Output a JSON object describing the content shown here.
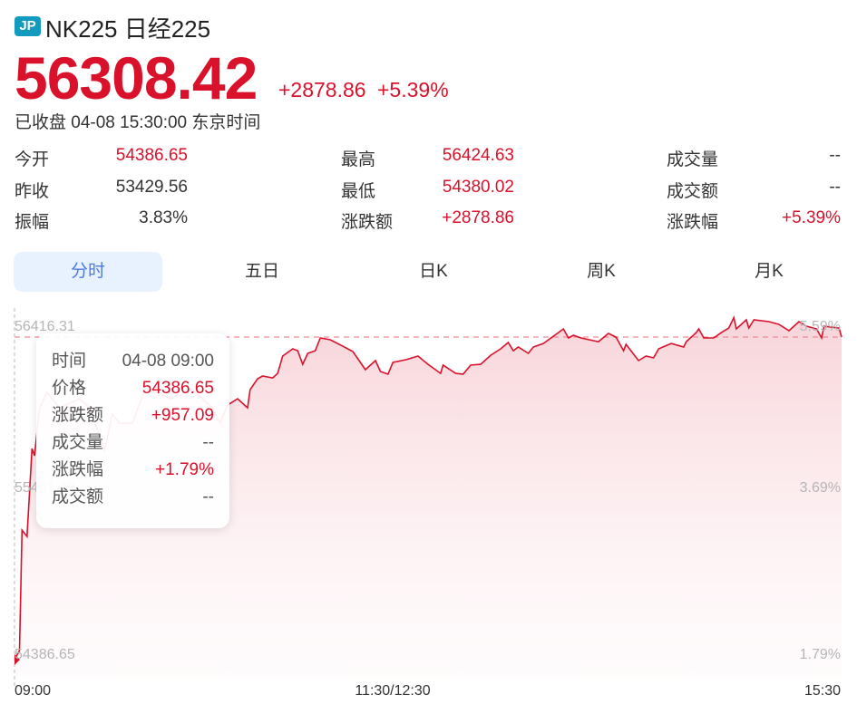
{
  "header": {
    "badge": "JP",
    "title": "NK225 日经225",
    "price": "56308.42",
    "change": "+2878.86",
    "change_pct": "+5.39%",
    "status": "已收盘 04-08 15:30:00 东京时间"
  },
  "stats": [
    {
      "label": "今开",
      "value": "54386.65",
      "color": "red"
    },
    {
      "label": "最高",
      "value": "56424.63",
      "color": "red"
    },
    {
      "label": "成交量",
      "value": "--",
      "color": "dark"
    },
    {
      "label": "昨收",
      "value": "53429.56",
      "color": "dark"
    },
    {
      "label": "最低",
      "value": "54380.02",
      "color": "red"
    },
    {
      "label": "成交额",
      "value": "--",
      "color": "dark"
    },
    {
      "label": "振幅",
      "value": "3.83%",
      "color": "dark"
    },
    {
      "label": "涨跌额",
      "value": "+2878.86",
      "color": "red"
    },
    {
      "label": "涨跌幅",
      "value": "+5.39%",
      "color": "red"
    }
  ],
  "tabs": [
    {
      "label": "分时",
      "active": true
    },
    {
      "label": "五日",
      "active": false
    },
    {
      "label": "日K",
      "active": false
    },
    {
      "label": "周K",
      "active": false
    },
    {
      "label": "月K",
      "active": false
    }
  ],
  "tooltip": {
    "rows": [
      {
        "label": "时间",
        "value": "04-08 09:00",
        "color": "dark"
      },
      {
        "label": "价格",
        "value": "54386.65",
        "color": "red"
      },
      {
        "label": "涨跌额",
        "value": "+957.09",
        "color": "red"
      },
      {
        "label": "成交量",
        "value": "--",
        "color": "dark"
      },
      {
        "label": "涨跌幅",
        "value": "+1.79%",
        "color": "red"
      },
      {
        "label": "成交额",
        "value": "--",
        "color": "dark"
      }
    ]
  },
  "colors": {
    "up": "#d9112a",
    "tab_active_bg": "#e8f1fe",
    "tab_active_text": "#4d7bdc",
    "badge": "#129bbf"
  },
  "chart_data": {
    "type": "area",
    "ylim": [
      54386.65,
      56416.31
    ],
    "y_ticks_left": [
      "56416.31",
      "55401.48",
      "54386.65"
    ],
    "y_ticks_right": [
      "5.59%",
      "3.69%",
      "1.79%"
    ],
    "x_ticks": [
      "09:00",
      "11:30/12:30",
      "15:30"
    ],
    "sessions": [
      [
        "09:00",
        "11:30"
      ],
      [
        "12:30",
        "15:30"
      ]
    ],
    "reference_line": 56308.42,
    "crosshair_time": "09:00",
    "grid": false,
    "points": [
      [
        "09:00",
        54386.65
      ],
      [
        "09:02",
        54440
      ],
      [
        "09:03",
        55158
      ],
      [
        "09:05",
        55120
      ],
      [
        "09:07",
        55644
      ],
      [
        "09:08",
        55601
      ],
      [
        "09:10",
        55887
      ],
      [
        "09:13",
        55979
      ],
      [
        "09:18",
        55887
      ],
      [
        "09:26",
        55941
      ],
      [
        "09:30",
        55887
      ],
      [
        "09:36",
        55633
      ],
      [
        "09:39",
        55849
      ],
      [
        "09:42",
        55795
      ],
      [
        "09:47",
        55795
      ],
      [
        "09:52",
        55995
      ],
      [
        "09:57",
        55979
      ],
      [
        "10:02",
        55941
      ],
      [
        "10:11",
        55995
      ],
      [
        "10:19",
        55887
      ],
      [
        "10:22",
        55795
      ],
      [
        "10:25",
        55903
      ],
      [
        "10:29",
        55941
      ],
      [
        "10:33",
        55887
      ],
      [
        "10:34",
        55995
      ],
      [
        "10:37",
        56060
      ],
      [
        "10:39",
        56076
      ],
      [
        "10:43",
        56065
      ],
      [
        "10:45",
        56092
      ],
      [
        "10:47",
        56195
      ],
      [
        "10:51",
        56238
      ],
      [
        "10:53",
        56227
      ],
      [
        "10:55",
        56146
      ],
      [
        "10:57",
        56211
      ],
      [
        "11:00",
        56227
      ],
      [
        "11:02",
        56303
      ],
      [
        "11:06",
        56292
      ],
      [
        "11:11",
        56254
      ],
      [
        "11:15",
        56222
      ],
      [
        "11:18",
        56157
      ],
      [
        "11:20",
        56114
      ],
      [
        "11:24",
        56168
      ],
      [
        "11:26",
        56103
      ],
      [
        "11:29",
        56087
      ],
      [
        "12:31",
        56157
      ],
      [
        "12:36",
        56173
      ],
      [
        "12:41",
        56195
      ],
      [
        "12:45",
        56146
      ],
      [
        "12:50",
        56092
      ],
      [
        "12:51",
        56141
      ],
      [
        "12:56",
        56092
      ],
      [
        "12:59",
        56087
      ],
      [
        "13:02",
        56141
      ],
      [
        "13:06",
        56146
      ],
      [
        "13:10",
        56200
      ],
      [
        "13:14",
        56238
      ],
      [
        "13:17",
        56276
      ],
      [
        "13:19",
        56227
      ],
      [
        "13:21",
        56249
      ],
      [
        "13:25",
        56211
      ],
      [
        "13:27",
        56249
      ],
      [
        "13:31",
        56270
      ],
      [
        "13:37",
        56335
      ],
      [
        "13:39",
        56357
      ],
      [
        "13:41",
        56303
      ],
      [
        "13:43",
        56319
      ],
      [
        "13:46",
        56303
      ],
      [
        "13:53",
        56281
      ],
      [
        "13:57",
        56330
      ],
      [
        "14:00",
        56308
      ],
      [
        "14:03",
        56227
      ],
      [
        "14:04",
        56265
      ],
      [
        "14:09",
        56168
      ],
      [
        "14:12",
        56195
      ],
      [
        "14:15",
        56184
      ],
      [
        "14:17",
        56238
      ],
      [
        "14:22",
        56270
      ],
      [
        "14:27",
        56249
      ],
      [
        "14:28",
        56281
      ],
      [
        "14:32",
        56335
      ],
      [
        "14:33",
        56357
      ],
      [
        "14:35",
        56303
      ],
      [
        "14:39",
        56303
      ],
      [
        "14:42",
        56335
      ],
      [
        "14:45",
        56362
      ],
      [
        "14:47",
        56424.63
      ],
      [
        "14:48",
        56357
      ],
      [
        "14:52",
        56411
      ],
      [
        "14:53",
        56362
      ],
      [
        "14:55",
        56411
      ],
      [
        "15:01",
        56400
      ],
      [
        "15:05",
        56384
      ],
      [
        "15:09",
        56346
      ],
      [
        "15:13",
        56400
      ],
      [
        "15:16",
        56373
      ],
      [
        "15:20",
        56357
      ],
      [
        "15:22",
        56303
      ],
      [
        "15:23",
        56373
      ],
      [
        "15:29",
        56362
      ],
      [
        "15:30",
        56308.42
      ]
    ]
  }
}
